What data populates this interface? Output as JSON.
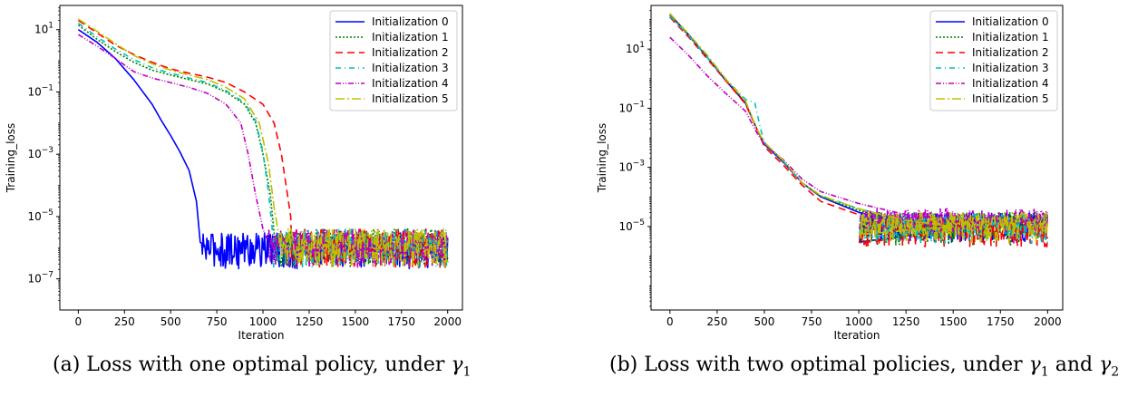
{
  "chart_data": [
    {
      "type": "line",
      "xlabel": "Iteration",
      "ylabel": "Training_loss",
      "yscale": "log",
      "xlim": [
        -100,
        2080
      ],
      "ylim": [
        1e-08,
        60
      ],
      "xticks": [
        0,
        250,
        500,
        750,
        1000,
        1250,
        1500,
        1750,
        2000
      ],
      "yticks": [
        {
          "value": 10,
          "mant": "10",
          "exp": "1"
        },
        {
          "value": 0.1,
          "mant": "10",
          "exp": "−1"
        },
        {
          "value": 0.001,
          "mant": "10",
          "exp": "−3"
        },
        {
          "value": 1e-05,
          "mant": "10",
          "exp": "−5"
        },
        {
          "value": 1e-07,
          "mant": "10",
          "exp": "−7"
        }
      ],
      "legend_position": "upper right",
      "series": [
        {
          "name": "Initialization 0",
          "color": "#0000ff",
          "dash": "",
          "x": [
            0,
            100,
            200,
            300,
            400,
            450,
            500,
            550,
            600,
            640,
            660
          ],
          "y": [
            10,
            4,
            1.2,
            0.25,
            0.04,
            0.012,
            0.004,
            0.0012,
            0.0003,
            3e-05,
            1.5e-06
          ],
          "noise": {
            "start": 660,
            "end": 2000,
            "lo": 5e-08,
            "hi": 3e-06
          }
        },
        {
          "name": "Initialization 1",
          "color": "#008000",
          "dash": "2,2",
          "x": [
            0,
            100,
            200,
            300,
            400,
            500,
            600,
            700,
            800,
            900,
            960,
            1000,
            1040,
            1060
          ],
          "y": [
            14,
            5,
            2,
            0.9,
            0.5,
            0.35,
            0.25,
            0.18,
            0.1,
            0.04,
            0.01,
            0.001,
            5e-05,
            3e-06
          ],
          "noise": {
            "start": 1060,
            "end": 2000,
            "lo": 5e-08,
            "hi": 4e-06
          }
        },
        {
          "name": "Initialization 2",
          "color": "#ff0000",
          "dash": "8,5",
          "x": [
            0,
            100,
            200,
            300,
            400,
            500,
            600,
            700,
            800,
            900,
            1000,
            1060,
            1100,
            1150
          ],
          "y": [
            20,
            8,
            3.2,
            1.6,
            0.9,
            0.55,
            0.4,
            0.3,
            0.2,
            0.1,
            0.04,
            0.01,
            0.001,
            1e-05
          ],
          "noise": {
            "start": 1150,
            "end": 2000,
            "lo": 5e-08,
            "hi": 4e-06
          }
        },
        {
          "name": "Initialization 3",
          "color": "#00bfbf",
          "dash": "6,4,1,4",
          "x": [
            0,
            100,
            200,
            300,
            400,
            500,
            600,
            700,
            800,
            900,
            960,
            1000,
            1030,
            1050
          ],
          "y": [
            16,
            6,
            2.4,
            1.1,
            0.6,
            0.4,
            0.28,
            0.2,
            0.11,
            0.045,
            0.012,
            0.0012,
            6e-05,
            4e-06
          ],
          "noise": {
            "start": 1050,
            "end": 2000,
            "lo": 5e-08,
            "hi": 4e-06
          }
        },
        {
          "name": "Initialization 4",
          "color": "#bf00bf",
          "dash": "6,2,1,2,1,2",
          "x": [
            0,
            100,
            200,
            300,
            400,
            500,
            600,
            700,
            800,
            880,
            920,
            960,
            1000,
            1020
          ],
          "y": [
            7,
            3,
            1.2,
            0.45,
            0.28,
            0.2,
            0.14,
            0.09,
            0.04,
            0.01,
            0.001,
            5e-05,
            4e-06,
            2e-06
          ],
          "noise": {
            "start": 1020,
            "end": 2000,
            "lo": 5e-08,
            "hi": 4e-06
          }
        },
        {
          "name": "Initialization 5",
          "color": "#bfbf00",
          "dash": "10,3,2,3",
          "x": [
            0,
            100,
            200,
            300,
            400,
            500,
            600,
            700,
            800,
            900,
            980,
            1030,
            1060,
            1080
          ],
          "y": [
            22,
            9,
            3.6,
            1.5,
            0.8,
            0.5,
            0.35,
            0.25,
            0.14,
            0.06,
            0.01,
            0.0005,
            2e-05,
            4e-06
          ],
          "noise": {
            "start": 1080,
            "end": 2000,
            "lo": 5e-08,
            "hi": 4e-06
          }
        }
      ]
    },
    {
      "type": "line",
      "xlabel": "Iteration",
      "ylabel": "Training_loss",
      "yscale": "log",
      "xlim": [
        -100,
        2080
      ],
      "ylim": [
        1.5e-08,
        300
      ],
      "xticks": [
        0,
        250,
        500,
        750,
        1000,
        1250,
        1500,
        1750,
        2000
      ],
      "yticks": [
        {
          "value": 10,
          "mant": "10",
          "exp": "1"
        },
        {
          "value": 0.1,
          "mant": "10",
          "exp": "−1"
        },
        {
          "value": 0.001,
          "mant": "10",
          "exp": "−3"
        },
        {
          "value": 1e-05,
          "mant": "10",
          "exp": "−5"
        }
      ],
      "legend_position": "upper right",
      "series": [
        {
          "name": "Initialization 0",
          "color": "#0000ff",
          "dash": "",
          "x": [
            0,
            100,
            200,
            300,
            400,
            460,
            500,
            600,
            700,
            800,
            1000,
            1250,
            1500
          ],
          "y": [
            150,
            30,
            5,
            0.8,
            0.15,
            0.02,
            0.006,
            0.0015,
            0.0003,
            0.0001,
            3e-05,
            1.2e-05,
            8e-06
          ],
          "noise": {
            "start": 1000,
            "end": 2000,
            "lo": 8e-07,
            "hi": 3e-05
          }
        },
        {
          "name": "Initialization 1",
          "color": "#008000",
          "dash": "2,2",
          "x": [
            0,
            100,
            200,
            300,
            400,
            460,
            500,
            600,
            700,
            800,
            1000,
            1250,
            1500
          ],
          "y": [
            140,
            28,
            5,
            0.9,
            0.16,
            0.02,
            0.006,
            0.0016,
            0.0003,
            0.0001,
            3.5e-05,
            1.4e-05,
            9e-06
          ],
          "noise": {
            "start": 1000,
            "end": 2000,
            "lo": 6e-07,
            "hi": 3e-05
          }
        },
        {
          "name": "Initialization 2",
          "color": "#ff0000",
          "dash": "8,5",
          "x": [
            0,
            100,
            200,
            300,
            400,
            460,
            500,
            600,
            700,
            800,
            1000,
            1250,
            1500
          ],
          "y": [
            120,
            25,
            4.5,
            0.8,
            0.14,
            0.02,
            0.005,
            0.0012,
            0.00025,
            7e-05,
            2.5e-05,
            1e-05,
            7e-06
          ],
          "noise": {
            "start": 1000,
            "end": 2000,
            "lo": 6e-07,
            "hi": 2e-05
          }
        },
        {
          "name": "Initialization 3",
          "color": "#00bfbf",
          "dash": "6,4,1,4",
          "x": [
            0,
            100,
            200,
            300,
            400,
            450,
            480,
            500,
            600,
            700,
            800,
            1000,
            1250,
            1500
          ],
          "y": [
            130,
            28,
            5,
            0.9,
            0.2,
            0.15,
            0.02,
            0.007,
            0.0016,
            0.0003,
            0.00011,
            4e-05,
            1.5e-05,
            1e-05
          ],
          "noise": {
            "start": 1000,
            "end": 2000,
            "lo": 7e-07,
            "hi": 3e-05
          }
        },
        {
          "name": "Initialization 4",
          "color": "#bf00bf",
          "dash": "6,2,1,2,1,2",
          "x": [
            0,
            100,
            200,
            300,
            400,
            460,
            500,
            600,
            700,
            800,
            1000,
            1250,
            1500
          ],
          "y": [
            25,
            6,
            1.2,
            0.3,
            0.08,
            0.015,
            0.006,
            0.0018,
            0.0004,
            0.00015,
            6e-05,
            2.5e-05,
            1.5e-05
          ],
          "noise": {
            "start": 1000,
            "end": 2000,
            "lo": 2e-06,
            "hi": 4e-05
          }
        },
        {
          "name": "Initialization 5",
          "color": "#bfbf00",
          "dash": "10,3,2,3",
          "x": [
            0,
            100,
            200,
            300,
            400,
            460,
            500,
            600,
            700,
            800,
            1000,
            1250,
            1500
          ],
          "y": [
            160,
            32,
            6,
            0.9,
            0.18,
            0.02,
            0.007,
            0.0017,
            0.0003,
            0.00011,
            4e-05,
            1.6e-05,
            1e-05
          ],
          "noise": {
            "start": 1000,
            "end": 2000,
            "lo": 8e-07,
            "hi": 3e-05
          }
        }
      ]
    }
  ],
  "captions": {
    "a_text": "(a) Loss with one optimal policy, under ",
    "a_sym": "γ",
    "a_sub": "1",
    "b_text": "(b) Loss with two optimal policies, under ",
    "b_sym1": "γ",
    "b_sub1": "1",
    "b_and": " and ",
    "b_sym2": "γ",
    "b_sub2": "2"
  }
}
